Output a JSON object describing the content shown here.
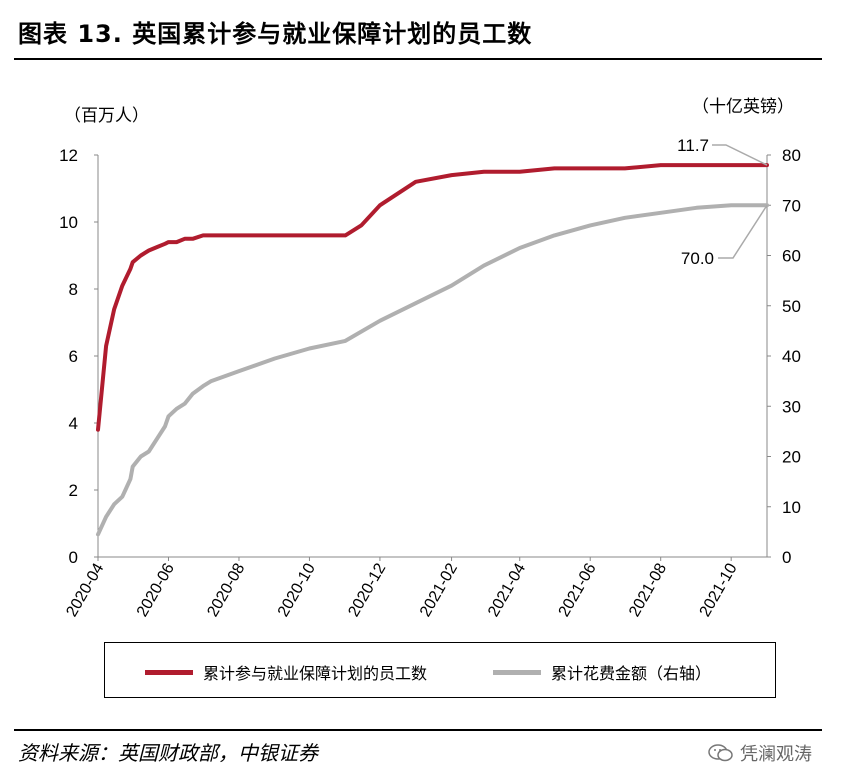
{
  "title": "图表 13. 英国累计参与就业保障计划的员工数",
  "source": "资料来源：英国财政部，中银证券",
  "watermark": "凭澜观涛",
  "colors": {
    "employees": "#b01c2e",
    "spend": "#b0b0b0"
  },
  "chart_data": {
    "type": "line",
    "left_unit": "（百万人）",
    "right_unit": "（十亿英镑）",
    "y_left": {
      "lim": [
        0,
        12
      ],
      "ticks": [
        "0",
        "2",
        "4",
        "6",
        "8",
        "10",
        "12"
      ]
    },
    "y_right": {
      "lim": [
        0,
        80
      ],
      "ticks": [
        "0",
        "10",
        "20",
        "30",
        "40",
        "50",
        "60",
        "70",
        "80"
      ]
    },
    "x_ticks": [
      "2020-04",
      "2020-06",
      "2020-08",
      "2020-10",
      "2020-12",
      "2021-02",
      "2021-04",
      "2021-06",
      "2021-08",
      "2021-10"
    ],
    "x_range": [
      "2020-04",
      "2021-11"
    ],
    "series": [
      {
        "name": "累计参与就业保障计划的员工数",
        "axis": "left",
        "end_label": "11.7",
        "x": [
          "2020-04",
          "2020-04-08",
          "2020-04-15",
          "2020-04-22",
          "2020-04-29",
          "2020-05",
          "2020-05-08",
          "2020-05-15",
          "2020-05-22",
          "2020-05-29",
          "2020-06",
          "2020-06-08",
          "2020-06-15",
          "2020-06-22",
          "2020-07",
          "2020-07-08",
          "2020-08",
          "2020-09",
          "2020-10",
          "2020-11",
          "2020-11-15",
          "2020-12",
          "2021-01",
          "2021-02",
          "2021-03",
          "2021-04",
          "2021-05",
          "2021-06",
          "2021-07",
          "2021-08",
          "2021-09",
          "2021-10",
          "2021-11"
        ],
        "values": [
          3.8,
          6.3,
          7.4,
          8.1,
          8.6,
          8.8,
          9.0,
          9.15,
          9.25,
          9.35,
          9.4,
          9.4,
          9.5,
          9.5,
          9.6,
          9.6,
          9.6,
          9.6,
          9.6,
          9.6,
          9.9,
          10.5,
          11.2,
          11.4,
          11.5,
          11.5,
          11.6,
          11.6,
          11.6,
          11.7,
          11.7,
          11.7,
          11.7
        ]
      },
      {
        "name": "累计花费金额（右轴）",
        "axis": "right",
        "end_label": "70.0",
        "x": [
          "2020-04",
          "2020-04-08",
          "2020-04-15",
          "2020-04-22",
          "2020-04-29",
          "2020-05",
          "2020-05-08",
          "2020-05-15",
          "2020-05-22",
          "2020-05-29",
          "2020-06",
          "2020-06-08",
          "2020-06-15",
          "2020-06-22",
          "2020-07",
          "2020-07-08",
          "2020-08",
          "2020-09",
          "2020-10",
          "2020-11",
          "2020-12",
          "2021-01",
          "2021-02",
          "2021-03",
          "2021-04",
          "2021-05",
          "2021-06",
          "2021-07",
          "2021-08",
          "2021-09",
          "2021-10",
          "2021-11"
        ],
        "values": [
          4.5,
          8.0,
          10.5,
          12.0,
          15.5,
          18.0,
          20.0,
          21.0,
          23.5,
          26.0,
          28.0,
          29.5,
          30.5,
          32.5,
          34.0,
          35.0,
          37.0,
          39.5,
          41.5,
          43.0,
          47.0,
          50.5,
          54.0,
          58.0,
          61.5,
          64.0,
          66.0,
          67.5,
          68.5,
          69.5,
          70.0,
          70.0
        ]
      }
    ]
  }
}
